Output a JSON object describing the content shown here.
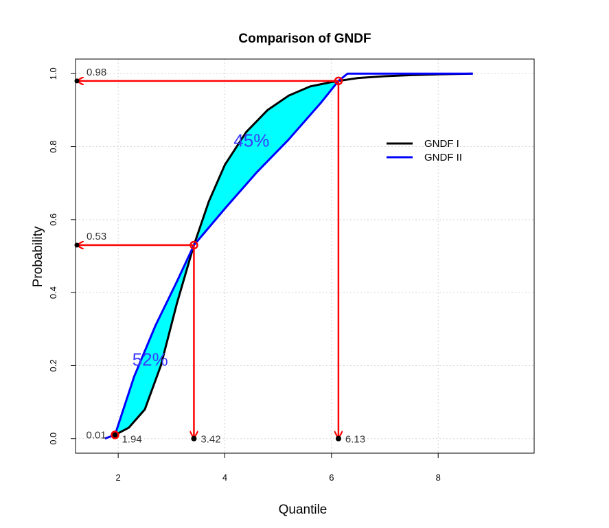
{
  "chart_data": {
    "type": "line",
    "title": "Comparison of GNDF",
    "xlabel": "Quantile",
    "ylabel": "Probability",
    "xlim": [
      1.2,
      9.8
    ],
    "ylim": [
      -0.04,
      1.04
    ],
    "x_ticks": [
      2,
      4,
      6,
      8
    ],
    "x_tick_labels": [
      "2",
      "4",
      "6",
      "8"
    ],
    "y_ticks": [
      0.0,
      0.2,
      0.4,
      0.6,
      0.8,
      1.0
    ],
    "y_tick_labels": [
      "0.0",
      "0.2",
      "0.4",
      "0.6",
      "0.8",
      "1.0"
    ],
    "grid": true,
    "legend_position": "top-right",
    "series": [
      {
        "name": "GNDF I",
        "color": "#000000",
        "x": [
          1.94,
          2.2,
          2.5,
          2.8,
          3.1,
          3.42,
          3.7,
          4.0,
          4.4,
          4.8,
          5.2,
          5.6,
          6.0,
          6.13,
          6.5,
          7.0,
          7.5,
          8.0,
          8.65
        ],
        "y": [
          0.01,
          0.03,
          0.08,
          0.2,
          0.37,
          0.53,
          0.65,
          0.75,
          0.84,
          0.9,
          0.94,
          0.965,
          0.977,
          0.98,
          0.988,
          0.993,
          0.996,
          0.998,
          1.0
        ]
      },
      {
        "name": "GNDF II",
        "color": "#0000ff",
        "x": [
          1.75,
          1.94,
          2.3,
          2.7,
          3.1,
          3.42,
          4.0,
          4.6,
          5.2,
          5.8,
          6.13,
          6.3,
          7.0,
          8.0,
          8.65
        ],
        "y": [
          0.0,
          0.01,
          0.17,
          0.31,
          0.43,
          0.53,
          0.63,
          0.73,
          0.82,
          0.92,
          0.98,
          1.0,
          1.0,
          1.0,
          1.0
        ]
      }
    ],
    "fill_color": "#00ffff",
    "points": [
      {
        "x": 1.94,
        "y": 0.01
      },
      {
        "x": 3.42,
        "y": 0.53
      },
      {
        "x": 6.13,
        "y": 0.98
      }
    ],
    "arrow_color": "#ff0000",
    "annotations": {
      "quantiles": [
        {
          "x": 1.94,
          "label": "1.94"
        },
        {
          "x": 3.42,
          "label": "3.42"
        },
        {
          "x": 6.13,
          "label": "6.13"
        }
      ],
      "probabilities": [
        {
          "y": 0.01,
          "label": "0.01"
        },
        {
          "y": 0.53,
          "label": "0.53"
        },
        {
          "y": 0.98,
          "label": "0.98"
        }
      ],
      "regions": [
        {
          "label": "52%",
          "x": 2.6,
          "y": 0.2,
          "color": "#3a3aff"
        },
        {
          "label": "45%",
          "x": 4.5,
          "y": 0.8,
          "color": "#3a3aff"
        }
      ]
    }
  }
}
